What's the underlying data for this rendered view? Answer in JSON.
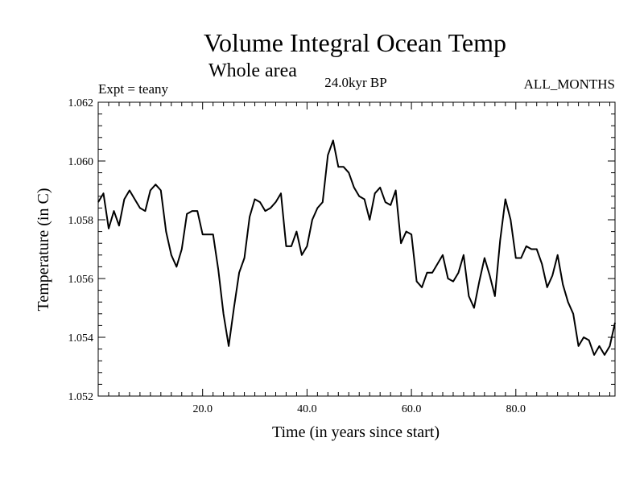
{
  "chart_data": {
    "type": "line",
    "title": "Volume Integral Ocean Temp",
    "subtitle": "Whole area",
    "expt_label": "Expt = teany",
    "time_label": "24.0kyr BP",
    "period_label": "ALL_MONTHS",
    "xlabel": "Time (in years since start)",
    "ylabel": "Temperature (in C)",
    "xlim": [
      0,
      99
    ],
    "ylim": [
      1.052,
      1.062
    ],
    "x_ticks": [
      20,
      40,
      60,
      80
    ],
    "x_tick_labels": [
      "20.0",
      "40.0",
      "60.0",
      "80.0"
    ],
    "y_ticks": [
      1.052,
      1.054,
      1.056,
      1.058,
      1.06,
      1.062
    ],
    "y_tick_labels": [
      "1.052",
      "1.054",
      "1.056",
      "1.058",
      "1.060",
      "1.062"
    ],
    "line_color": "#000000",
    "series": [
      {
        "name": "Volume Integral Ocean Temp",
        "x": [
          0,
          1,
          2,
          3,
          4,
          5,
          6,
          7,
          8,
          9,
          10,
          11,
          12,
          13,
          14,
          15,
          16,
          17,
          18,
          19,
          20,
          21,
          22,
          23,
          24,
          25,
          26,
          27,
          28,
          29,
          30,
          31,
          32,
          33,
          34,
          35,
          36,
          37,
          38,
          39,
          40,
          41,
          42,
          43,
          44,
          45,
          46,
          47,
          48,
          49,
          50,
          51,
          52,
          53,
          54,
          55,
          56,
          57,
          58,
          59,
          60,
          61,
          62,
          63,
          64,
          65,
          66,
          67,
          68,
          69,
          70,
          71,
          72,
          73,
          74,
          75,
          76,
          77,
          78,
          79,
          80,
          81,
          82,
          83,
          84,
          85,
          86,
          87,
          88,
          89,
          90,
          91,
          92,
          93,
          94,
          95,
          96,
          97,
          98,
          99
        ],
        "values": [
          1.0586,
          1.0589,
          1.0577,
          1.0583,
          1.0578,
          1.0587,
          1.059,
          1.0587,
          1.0584,
          1.0583,
          1.059,
          1.0592,
          1.059,
          1.0576,
          1.0568,
          1.0564,
          1.057,
          1.0582,
          1.0583,
          1.0583,
          1.0575,
          1.0575,
          1.0575,
          1.0563,
          1.0548,
          1.0537,
          1.055,
          1.0562,
          1.0567,
          1.0581,
          1.0587,
          1.0586,
          1.0583,
          1.0584,
          1.0586,
          1.0589,
          1.0571,
          1.0571,
          1.0576,
          1.0568,
          1.0571,
          1.058,
          1.0584,
          1.0586,
          1.0602,
          1.0607,
          1.0598,
          1.0598,
          1.0596,
          1.0591,
          1.0588,
          1.0587,
          1.058,
          1.0589,
          1.0591,
          1.0586,
          1.0585,
          1.059,
          1.0572,
          1.0576,
          1.0575,
          1.0559,
          1.0557,
          1.0562,
          1.0562,
          1.0565,
          1.0568,
          1.056,
          1.0559,
          1.0562,
          1.0568,
          1.0554,
          1.055,
          1.0559,
          1.0567,
          1.0561,
          1.0554,
          1.0573,
          1.0587,
          1.058,
          1.0567,
          1.0567,
          1.0571,
          1.057,
          1.057,
          1.0565,
          1.0557,
          1.0561,
          1.0568,
          1.0558,
          1.0552,
          1.0548,
          1.0537,
          1.054,
          1.0539,
          1.0534,
          1.0537,
          1.0534,
          1.0537,
          1.0545
        ]
      }
    ]
  }
}
